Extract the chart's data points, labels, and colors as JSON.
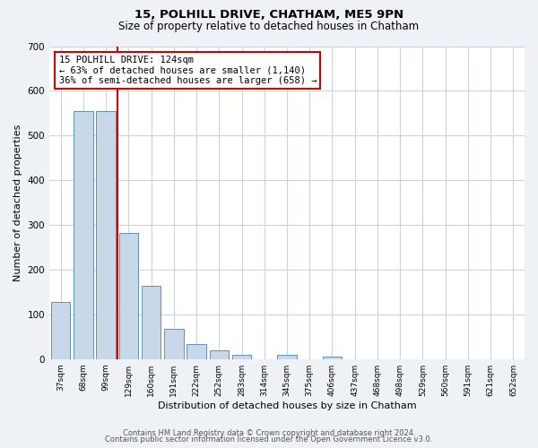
{
  "title1": "15, POLHILL DRIVE, CHATHAM, ME5 9PN",
  "title2": "Size of property relative to detached houses in Chatham",
  "xlabel": "Distribution of detached houses by size in Chatham",
  "ylabel": "Number of detached properties",
  "bar_labels": [
    "37sqm",
    "68sqm",
    "99sqm",
    "129sqm",
    "160sqm",
    "191sqm",
    "222sqm",
    "252sqm",
    "283sqm",
    "314sqm",
    "345sqm",
    "375sqm",
    "406sqm",
    "437sqm",
    "468sqm",
    "498sqm",
    "529sqm",
    "560sqm",
    "591sqm",
    "621sqm",
    "652sqm"
  ],
  "bar_values": [
    128,
    555,
    555,
    283,
    163,
    68,
    33,
    20,
    10,
    0,
    10,
    0,
    5,
    0,
    0,
    0,
    0,
    0,
    0,
    0,
    0
  ],
  "bar_color": "#c8d8e8",
  "bar_edge_color": "#6090b8",
  "ylim": [
    0,
    700
  ],
  "yticks": [
    0,
    100,
    200,
    300,
    400,
    500,
    600,
    700
  ],
  "property_line_color": "#cc0000",
  "annotation_title": "15 POLHILL DRIVE: 124sqm",
  "annotation_line1": "← 63% of detached houses are smaller (1,140)",
  "annotation_line2": "36% of semi-detached houses are larger (658) →",
  "annotation_box_color": "#cc0000",
  "footer1": "Contains HM Land Registry data © Crown copyright and database right 2024.",
  "footer2": "Contains public sector information licensed under the Open Government Licence v3.0.",
  "bg_color": "#eef2f6",
  "plot_bg_color": "#ffffff",
  "grid_color": "#c8d4e0"
}
